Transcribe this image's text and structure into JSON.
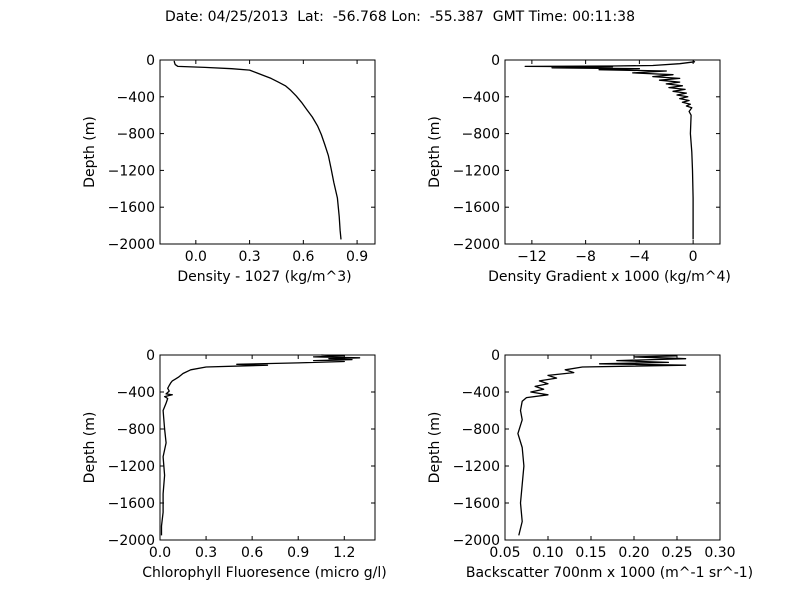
{
  "figure": {
    "title": "Date: 04/25/2013  Lat:  -56.768 Lon:  -55.387  GMT Time: 00:11:38"
  },
  "chart_data": [
    {
      "type": "line",
      "title": "",
      "xlabel": "Density - 1027 (kg/m^3)",
      "ylabel": "Depth (m)",
      "xlim": [
        -0.2,
        1.0
      ],
      "ylim": [
        -2000,
        0
      ],
      "xticks": [
        0.0,
        0.3,
        0.6,
        0.9
      ],
      "xtick_labels": [
        "0.0",
        "0.3",
        "0.6",
        "0.9"
      ],
      "yticks": [
        0,
        -400,
        -800,
        -1200,
        -1600,
        -2000
      ],
      "ytick_labels": [
        "0",
        "−400",
        "−800",
        "−1200",
        "−1600",
        "−2000"
      ],
      "grid": false,
      "series": [
        {
          "x": [
            -0.12,
            -0.12,
            -0.115,
            -0.1,
            0.05,
            0.2,
            0.3,
            0.34,
            0.38,
            0.42,
            0.46,
            0.5,
            0.53,
            0.56,
            0.59,
            0.62,
            0.65,
            0.68,
            0.7,
            0.72,
            0.74,
            0.755,
            0.77,
            0.79,
            0.8,
            0.805,
            0.81
          ],
          "y": [
            -10,
            -20,
            -50,
            -70,
            -80,
            -95,
            -110,
            -140,
            -170,
            -200,
            -240,
            -280,
            -330,
            -390,
            -460,
            -540,
            -620,
            -720,
            -810,
            -920,
            -1040,
            -1180,
            -1330,
            -1500,
            -1700,
            -1850,
            -1950
          ]
        }
      ]
    },
    {
      "type": "line",
      "title": "",
      "xlabel": "Density Gradient x 1000 (kg/m^4)",
      "ylabel": "Depth (m)",
      "xlim": [
        -14,
        2
      ],
      "ylim": [
        -2000,
        0
      ],
      "xticks": [
        -12,
        -8,
        -4,
        0
      ],
      "xtick_labels": [
        "−12",
        "−8",
        "−4",
        "0"
      ],
      "yticks": [
        0,
        -400,
        -800,
        -1200,
        -1600,
        -2000
      ],
      "ytick_labels": [
        "0",
        "−400",
        "−800",
        "−1200",
        "−1600",
        "−2000"
      ],
      "grid": false,
      "series": [
        {
          "x": [
            0,
            0.1,
            -1,
            -3,
            -6,
            -12.5,
            -6,
            -10.5,
            -4,
            -7,
            -2,
            -4.5,
            -1.5,
            -3,
            -1,
            -2.5,
            -1,
            -2,
            -0.8,
            -1.8,
            -0.6,
            -1.5,
            -0.5,
            -1.2,
            -0.4,
            -1,
            -0.3,
            -0.8,
            -0.2,
            -0.5,
            -0.1,
            -0.3,
            -0.15,
            -0.2,
            -0.1,
            -0.05,
            0,
            0,
            0
          ],
          "y": [
            -10,
            -20,
            -40,
            -60,
            -65,
            -70,
            -75,
            -85,
            -95,
            -105,
            -120,
            -140,
            -160,
            -180,
            -200,
            -220,
            -240,
            -260,
            -280,
            -300,
            -320,
            -340,
            -360,
            -380,
            -400,
            -420,
            -440,
            -460,
            -480,
            -500,
            -520,
            -560,
            -600,
            -800,
            -1000,
            -1200,
            -1500,
            -1800,
            -1950
          ]
        }
      ]
    },
    {
      "type": "line",
      "title": "",
      "xlabel": "Chlorophyll Fluoresence (micro g/l)",
      "ylabel": "Depth (m)",
      "xlim": [
        0.0,
        1.4
      ],
      "ylim": [
        -2000,
        0
      ],
      "xticks": [
        0.0,
        0.3,
        0.6,
        0.9,
        1.2
      ],
      "xtick_labels": [
        "0.0",
        "0.3",
        "0.6",
        "0.9",
        "1.2"
      ],
      "yticks": [
        0,
        -400,
        -800,
        -1200,
        -1600,
        -2000
      ],
      "ytick_labels": [
        "0",
        "−400",
        "−800",
        "−1200",
        "−1600",
        "−2000"
      ],
      "grid": false,
      "series": [
        {
          "x": [
            1.05,
            1.2,
            1.0,
            1.3,
            1.1,
            1.25,
            1.0,
            1.2,
            0.9,
            0.5,
            0.7,
            0.3,
            0.2,
            0.15,
            0.12,
            0.1,
            0.08,
            0.07,
            0.06,
            0.05,
            0.06,
            0.04,
            0.08,
            0.03,
            0.05,
            0.04,
            0.02,
            0.03,
            0.04,
            0.02,
            0.03,
            0.02,
            0.02,
            0.01,
            0.01
          ],
          "y": [
            0,
            -10,
            -20,
            -30,
            -40,
            -50,
            -60,
            -70,
            -85,
            -100,
            -110,
            -130,
            -160,
            -200,
            -240,
            -260,
            -280,
            -300,
            -330,
            -360,
            -390,
            -420,
            -430,
            -450,
            -470,
            -520,
            -600,
            -800,
            -950,
            -1100,
            -1300,
            -1500,
            -1700,
            -1850,
            -1950
          ]
        }
      ]
    },
    {
      "type": "line",
      "title": "",
      "xlabel": "Backscatter 700nm x 1000 (m^-1 sr^-1)",
      "ylabel": "Depth (m)",
      "xlim": [
        0.05,
        0.3
      ],
      "ylim": [
        -2000,
        0
      ],
      "xticks": [
        0.05,
        0.1,
        0.15,
        0.2,
        0.25,
        0.3
      ],
      "xtick_labels": [
        "0.05",
        "0.10",
        "0.15",
        "0.20",
        "0.25",
        "0.30"
      ],
      "yticks": [
        0,
        -400,
        -800,
        -1200,
        -1600,
        -2000
      ],
      "ytick_labels": [
        "0",
        "−400",
        "−800",
        "−1200",
        "−1600",
        "−2000"
      ],
      "grid": false,
      "series": [
        {
          "x": [
            0.25,
            0.2,
            0.26,
            0.18,
            0.24,
            0.16,
            0.26,
            0.14,
            0.12,
            0.13,
            0.1,
            0.11,
            0.09,
            0.1,
            0.085,
            0.095,
            0.08,
            0.1,
            0.075,
            0.07,
            0.068,
            0.07,
            0.065,
            0.07,
            0.072,
            0.07,
            0.068,
            0.07,
            0.066
          ],
          "y": [
            -10,
            -20,
            -40,
            -60,
            -80,
            -95,
            -110,
            -130,
            -160,
            -190,
            -220,
            -250,
            -280,
            -310,
            -340,
            -370,
            -400,
            -430,
            -460,
            -500,
            -600,
            -700,
            -850,
            -1000,
            -1200,
            -1400,
            -1600,
            -1800,
            -1950
          ]
        }
      ]
    }
  ]
}
